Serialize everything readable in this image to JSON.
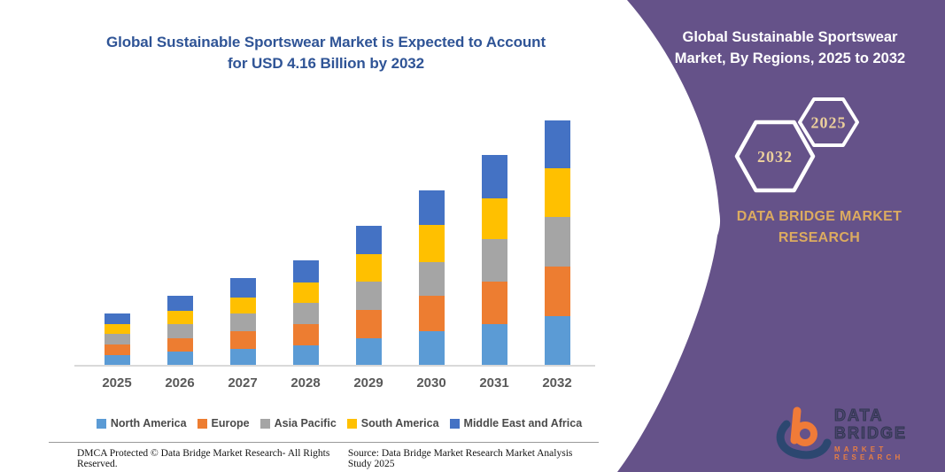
{
  "header": {
    "title_line1": "Global Sustainable Sportswear Market is Expected to Account",
    "title_line2": "for USD 4.16 Billion by 2032"
  },
  "panel": {
    "title_line1": "Global Sustainable Sportswear",
    "title_line2": "Market, By Regions, 2025 to 2032",
    "hexagon_back_year": "2032",
    "hexagon_front_year": "2025",
    "brand_line1": "DATA BRIDGE MARKET",
    "brand_line2": "RESEARCH"
  },
  "logo": {
    "name": "DATA BRIDGE",
    "subname": "MARKET RESEARCH"
  },
  "footer": {
    "dmca": "DMCA Protected © Data Bridge Market Research-  All Rights Reserved.",
    "source": "Source: Data Bridge Market Research  Market Analysis Study 2025"
  },
  "colors": {
    "panel_purple": "#655289",
    "title_blue": "#2F5496",
    "gold": "#DCAB60",
    "hex_gold": "#EBCF9C",
    "axis_gray": "#D9D9D9",
    "label_gray": "#595959",
    "logo_navy": "#2C4770",
    "logo_orange": "#F07B38"
  },
  "chart_data": {
    "type": "bar",
    "stacked": true,
    "title": "Global Sustainable Sportswear Market is Expected to Account for USD 4.16 Billion by 2032",
    "unit": "USD Billion",
    "xlabel": "",
    "ylabel": "",
    "y_axis_visible": false,
    "grid": false,
    "legend_position": "bottom",
    "ylim": [
      0,
      4.5
    ],
    "categories": [
      "2025",
      "2026",
      "2027",
      "2028",
      "2029",
      "2030",
      "2031",
      "2032"
    ],
    "series": [
      {
        "name": "North America",
        "color": "#5B9BD5",
        "values": [
          0.18,
          0.24,
          0.29,
          0.35,
          0.47,
          0.58,
          0.7,
          0.84
        ]
      },
      {
        "name": "Europe",
        "color": "#ED7D31",
        "values": [
          0.18,
          0.23,
          0.3,
          0.36,
          0.48,
          0.6,
          0.72,
          0.84
        ]
      },
      {
        "name": "Asia Pacific",
        "color": "#A5A5A5",
        "values": [
          0.18,
          0.24,
          0.3,
          0.36,
          0.48,
          0.58,
          0.72,
          0.84
        ]
      },
      {
        "name": "South America",
        "color": "#FFC000",
        "values": [
          0.16,
          0.22,
          0.26,
          0.34,
          0.46,
          0.63,
          0.7,
          0.83
        ]
      },
      {
        "name": "Middle East and Africa",
        "color": "#4472C4",
        "values": [
          0.19,
          0.26,
          0.34,
          0.38,
          0.48,
          0.58,
          0.73,
          0.81
        ]
      }
    ],
    "totals": [
      0.89,
      1.19,
      1.49,
      1.79,
      2.37,
      2.97,
      3.57,
      4.16
    ]
  }
}
